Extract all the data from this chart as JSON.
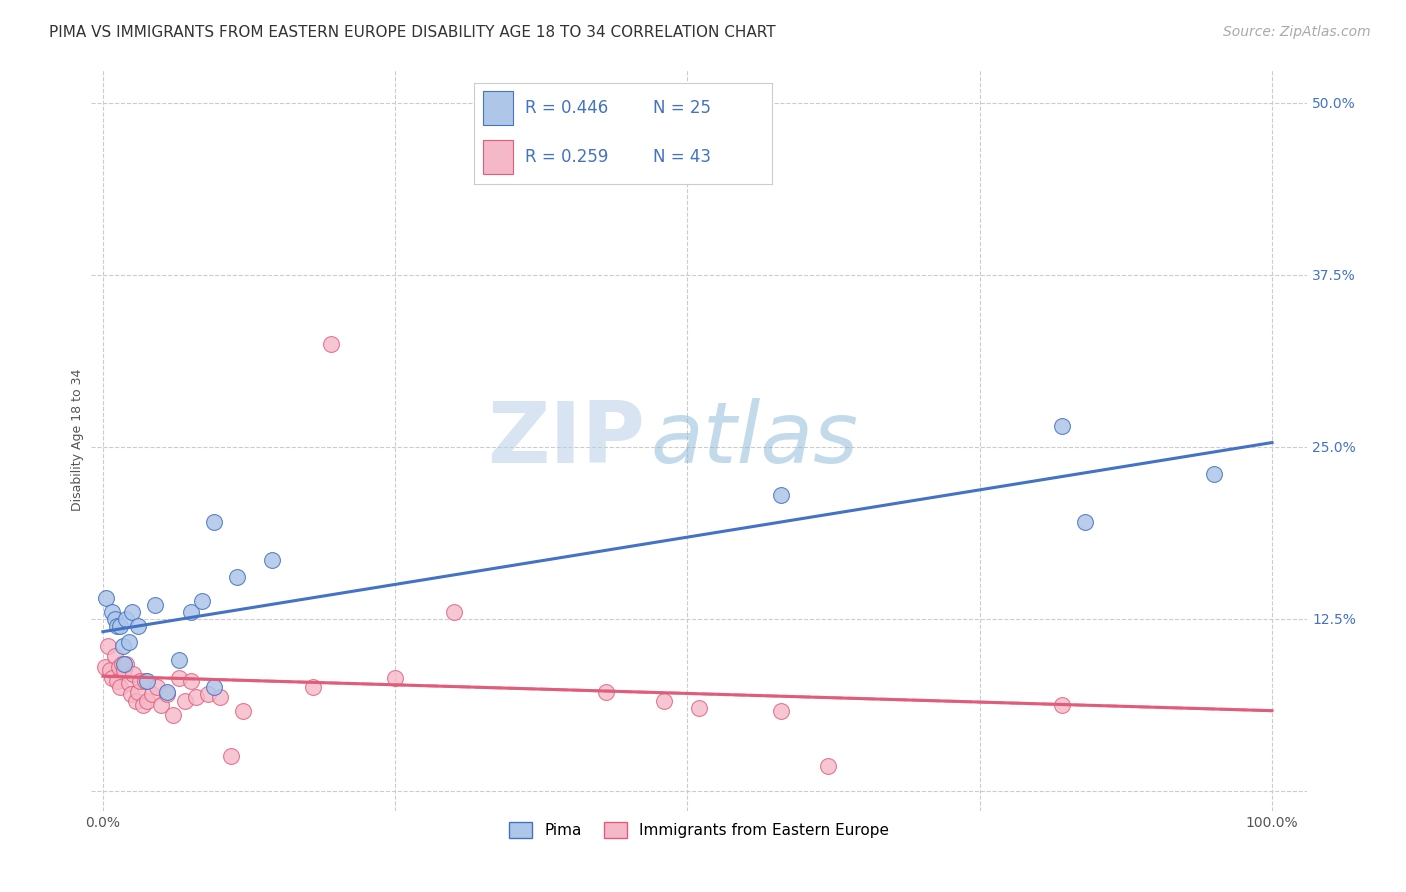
{
  "title": "PIMA VS IMMIGRANTS FROM EASTERN EUROPE DISABILITY AGE 18 TO 34 CORRELATION CHART",
  "source": "Source: ZipAtlas.com",
  "xlabel": "",
  "ylabel": "Disability Age 18 to 34",
  "xlim": [
    -0.01,
    1.03
  ],
  "ylim": [
    -0.015,
    0.525
  ],
  "xticks": [
    0.0,
    0.25,
    0.5,
    0.75,
    1.0
  ],
  "xticklabels": [
    "0.0%",
    "",
    "",
    "",
    "100.0%"
  ],
  "yticks": [
    0.0,
    0.125,
    0.25,
    0.375,
    0.5
  ],
  "yticklabels": [
    "",
    "12.5%",
    "25.0%",
    "37.5%",
    "50.0%"
  ],
  "pima_R": 0.446,
  "pima_N": 25,
  "ee_R": 0.259,
  "ee_N": 43,
  "pima_color": "#aec6e8",
  "pima_line_color": "#4472c4",
  "ee_color": "#f4b8c8",
  "ee_line_color": "#e05c7a",
  "ee_trendline_color": "#e05c7a",
  "legend_label_pima": "Pima",
  "legend_label_ee": "Immigrants from Eastern Europe",
  "watermark_zip": "ZIP",
  "watermark_atlas": "atlas",
  "pima_x": [
    0.003,
    0.008,
    0.01,
    0.012,
    0.015,
    0.017,
    0.018,
    0.02,
    0.022,
    0.025,
    0.03,
    0.038,
    0.045,
    0.055,
    0.065,
    0.075,
    0.085,
    0.095,
    0.115,
    0.145,
    0.095,
    0.58,
    0.82,
    0.84,
    0.95
  ],
  "pima_y": [
    0.14,
    0.13,
    0.125,
    0.12,
    0.12,
    0.105,
    0.092,
    0.125,
    0.108,
    0.13,
    0.12,
    0.08,
    0.135,
    0.072,
    0.095,
    0.13,
    0.138,
    0.075,
    0.155,
    0.168,
    0.195,
    0.215,
    0.265,
    0.195,
    0.23
  ],
  "ee_x": [
    0.002,
    0.004,
    0.006,
    0.008,
    0.01,
    0.012,
    0.014,
    0.015,
    0.016,
    0.018,
    0.02,
    0.022,
    0.024,
    0.026,
    0.028,
    0.03,
    0.032,
    0.034,
    0.036,
    0.038,
    0.042,
    0.046,
    0.05,
    0.055,
    0.06,
    0.065,
    0.07,
    0.075,
    0.08,
    0.09,
    0.1,
    0.11,
    0.12,
    0.18,
    0.25,
    0.3,
    0.43,
    0.48,
    0.51,
    0.58,
    0.62,
    0.82,
    0.195
  ],
  "ee_y": [
    0.09,
    0.105,
    0.088,
    0.082,
    0.098,
    0.08,
    0.09,
    0.075,
    0.092,
    0.088,
    0.092,
    0.078,
    0.07,
    0.085,
    0.065,
    0.072,
    0.08,
    0.062,
    0.08,
    0.065,
    0.07,
    0.075,
    0.062,
    0.07,
    0.055,
    0.082,
    0.065,
    0.08,
    0.068,
    0.07,
    0.068,
    0.025,
    0.058,
    0.075,
    0.082,
    0.13,
    0.072,
    0.065,
    0.06,
    0.058,
    0.018,
    0.062,
    0.325
  ],
  "grid_color": "#cccccc",
  "background_color": "#ffffff",
  "title_fontsize": 11,
  "axis_label_fontsize": 9,
  "tick_fontsize": 10,
  "legend_fontsize": 12,
  "source_fontsize": 10
}
